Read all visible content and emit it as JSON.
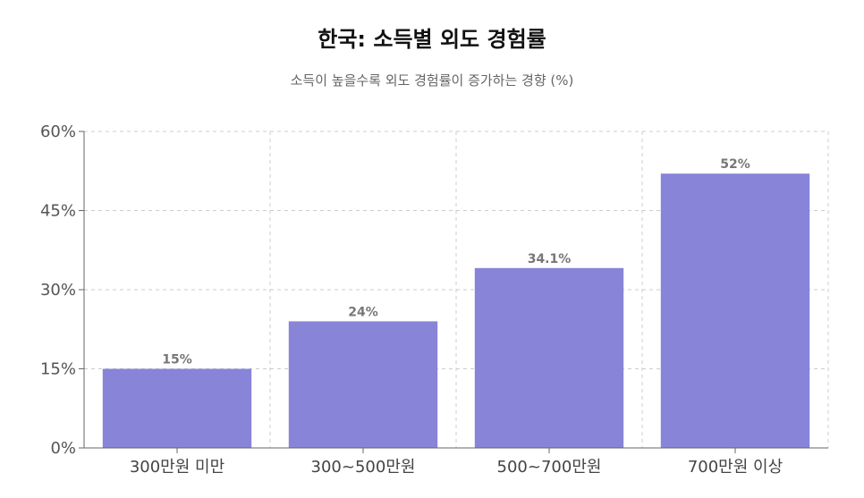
{
  "chart_data": {
    "type": "bar",
    "title": "한국: 소득별 외도 경험률",
    "subtitle": "소득이 높을수록 외도 경험률이 증가하는 경향 (%)",
    "categories": [
      "300만원 미만",
      "300~500만원",
      "500~700만원",
      "700만원 이상"
    ],
    "values": [
      15,
      24,
      34.1,
      52
    ],
    "data_labels": [
      "15%",
      "24%",
      "34.1%",
      "52%"
    ],
    "ylim": [
      0,
      60
    ],
    "yticks": [
      0,
      15,
      30,
      45,
      60
    ],
    "ytick_labels": [
      "0%",
      "15%",
      "30%",
      "45%",
      "60%"
    ],
    "grid": true,
    "bar_color": "#8884d8",
    "grid_color": "#cccccc",
    "axis_color": "#666666"
  }
}
